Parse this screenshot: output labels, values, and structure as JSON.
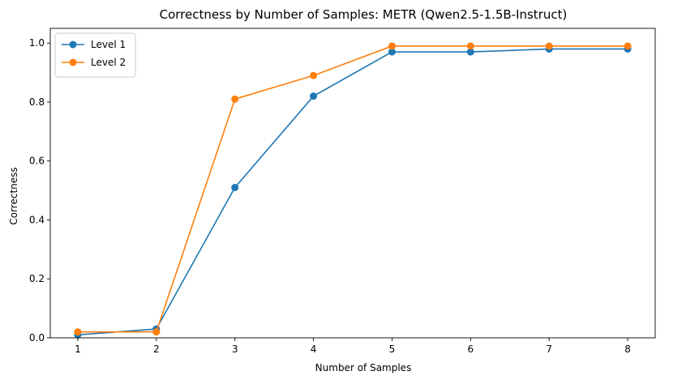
{
  "chart_data": {
    "type": "line",
    "title": "Correctness by Number of Samples: METR (Qwen2.5-1.5B-Instruct)",
    "xlabel": "Number of Samples",
    "ylabel": "Correctness",
    "x": [
      1,
      2,
      3,
      4,
      5,
      6,
      7,
      8
    ],
    "xlim": [
      0.65,
      8.35
    ],
    "ylim": [
      0,
      1.05
    ],
    "xticks": [
      1,
      2,
      3,
      4,
      5,
      6,
      7,
      8
    ],
    "yticks": [
      0.0,
      0.2,
      0.4,
      0.6,
      0.8,
      1.0
    ],
    "grid": false,
    "legend_position": "top-left",
    "series": [
      {
        "name": "Level 1",
        "color": "#1f77b4",
        "marker": "circle",
        "values": [
          0.01,
          0.03,
          0.51,
          0.82,
          0.97,
          0.97,
          0.98,
          0.98
        ]
      },
      {
        "name": "Level 2",
        "color": "#ff7f0e",
        "marker": "circle",
        "values": [
          0.02,
          0.02,
          0.81,
          0.89,
          0.99,
          0.99,
          0.99,
          0.99
        ]
      }
    ]
  }
}
